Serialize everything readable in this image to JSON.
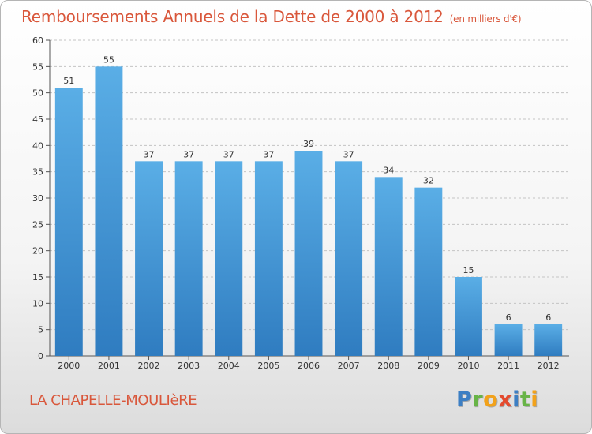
{
  "header": {
    "title": "Remboursements Annuels de la Dette de 2000 à 2012",
    "unit": "(en milliers d'€)"
  },
  "footer": {
    "commune": "LA CHAPELLE-MOULIèRE",
    "logo_letters": [
      "P",
      "r",
      "o",
      "x",
      "i",
      "t",
      "i"
    ]
  },
  "colors": {
    "title": "#d9573b",
    "bar_top": "#5aaee6",
    "bar_bottom": "#2f7cc0",
    "grid": "#c4c4c4"
  },
  "chart_data": {
    "type": "bar",
    "title": "Remboursements Annuels de la Dette de 2000 à 2012",
    "xlabel": "",
    "ylabel": "",
    "categories": [
      "2000",
      "2001",
      "2002",
      "2003",
      "2004",
      "2005",
      "2006",
      "2007",
      "2008",
      "2009",
      "2010",
      "2011",
      "2012"
    ],
    "values": [
      51,
      55,
      37,
      37,
      37,
      37,
      39,
      37,
      34,
      32,
      15,
      6,
      6
    ],
    "ylim": [
      0,
      60
    ],
    "yticks": [
      0,
      5,
      10,
      15,
      20,
      25,
      30,
      35,
      40,
      45,
      50,
      55,
      60
    ],
    "grid": true,
    "data_labels": true
  }
}
